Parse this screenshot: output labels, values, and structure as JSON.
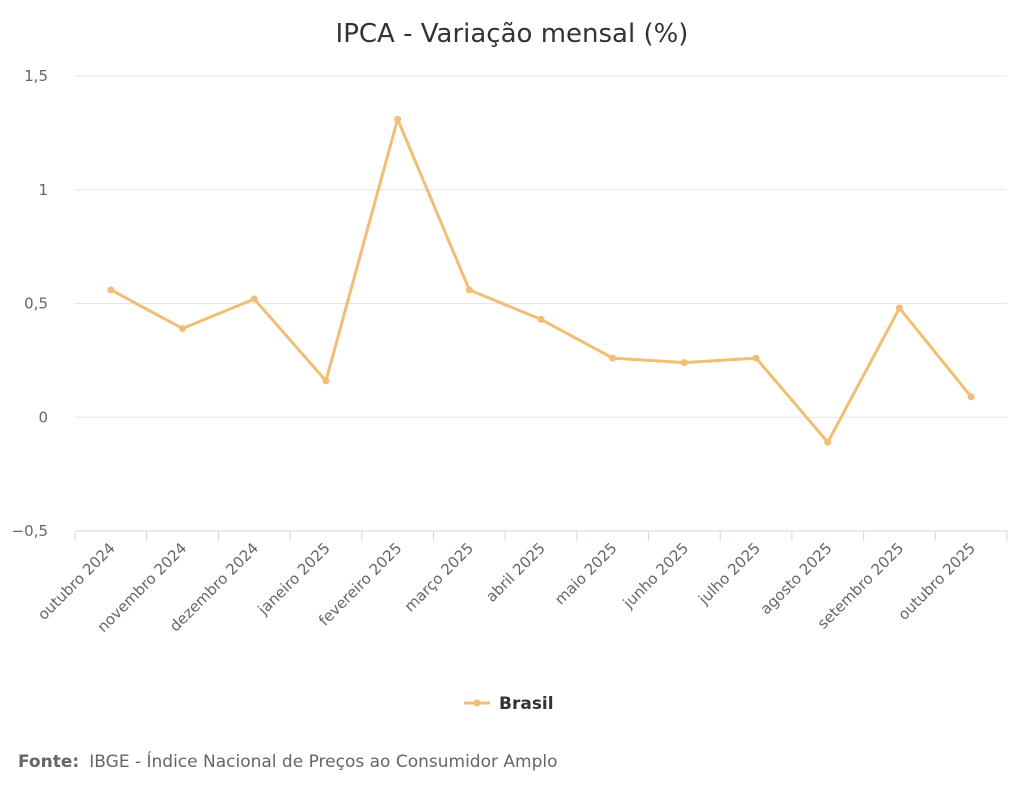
{
  "chart_data": {
    "type": "line",
    "title": "IPCA - Variação mensal (%)",
    "xlabel": "",
    "ylabel": "",
    "categories": [
      "outubro 2024",
      "novembro 2024",
      "dezembro 2024",
      "janeiro 2025",
      "fevereiro 2025",
      "março 2025",
      "abril 2025",
      "maio 2025",
      "junho 2025",
      "julho 2025",
      "agosto 2025",
      "setembro 2025",
      "outubro 2025"
    ],
    "series": [
      {
        "name": "Brasil",
        "color": "#f2bd74",
        "values": [
          0.56,
          0.39,
          0.52,
          0.16,
          1.31,
          0.56,
          0.43,
          0.26,
          0.24,
          0.26,
          -0.11,
          0.48,
          0.09
        ]
      }
    ],
    "ylim": [
      -0.5,
      1.5
    ],
    "yticks": [
      -0.5,
      0,
      0.5,
      1,
      1.5
    ],
    "ytick_labels": [
      "−0,5",
      "0",
      "0,5",
      "1",
      "1,5"
    ],
    "grid": true,
    "legend_position": "bottom-center"
  },
  "source": {
    "label": "Fonte:",
    "text": "IBGE - Índice Nacional de Preços ao Consumidor Amplo"
  }
}
